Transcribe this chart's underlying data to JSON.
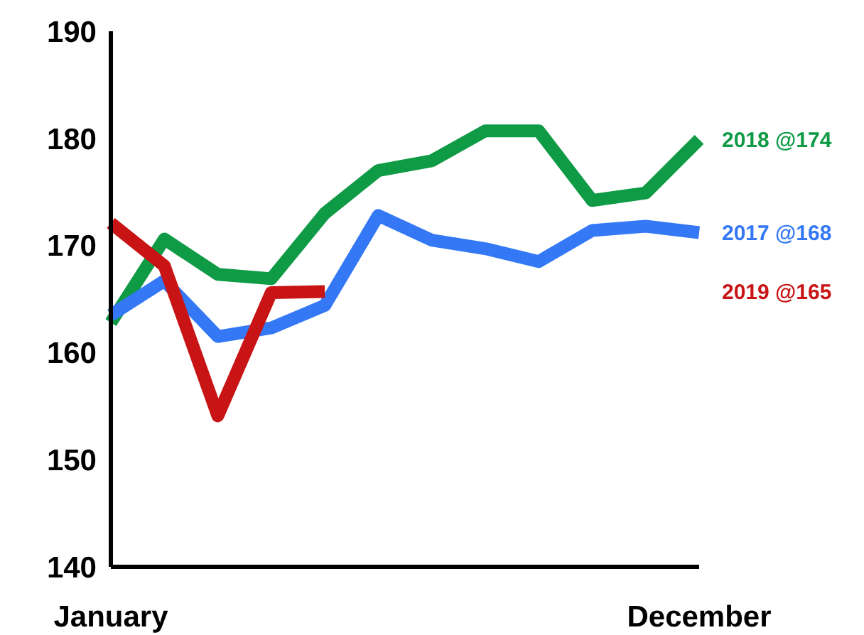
{
  "chart_data": {
    "type": "line",
    "categories": [
      "January",
      null,
      null,
      null,
      null,
      null,
      null,
      null,
      null,
      null,
      null,
      "December"
    ],
    "ylim": [
      140,
      190
    ],
    "yticks": [
      140,
      150,
      160,
      170,
      180,
      190
    ],
    "grid": false,
    "marker": "none",
    "line_style": "solid",
    "series": [
      {
        "name": "2018 @174",
        "color": "#0f9a45",
        "values": [
          162.8,
          170.6,
          167.3,
          166.9,
          173.0,
          177.0,
          177.9,
          180.7,
          180.7,
          174.2,
          174.9,
          179.9
        ]
      },
      {
        "name": "2017 @168",
        "color": "#3478f6",
        "values": [
          163.5,
          166.7,
          161.5,
          162.3,
          164.4,
          172.8,
          170.5,
          169.7,
          168.5,
          171.4,
          171.8,
          171.2
        ]
      },
      {
        "name": "2019 @165",
        "color": "#c81414",
        "values": [
          172.1,
          168.1,
          154.1,
          165.6,
          165.7,
          null,
          null,
          null,
          null,
          null,
          null,
          null
        ]
      }
    ]
  }
}
